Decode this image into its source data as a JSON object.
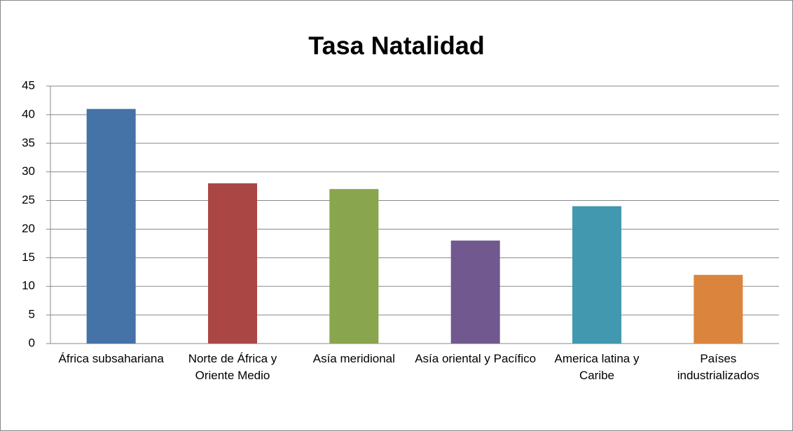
{
  "chart_data": {
    "type": "bar",
    "title": "Tasa Natalidad",
    "categories": [
      "África subsahariana",
      "Norte de África y Oriente Medio",
      "Asía meridional",
      "Asía oriental y Pacífico",
      "America latina y Caribe",
      "Países industrializados"
    ],
    "values": [
      41,
      28,
      27,
      18,
      24,
      12
    ],
    "colors": [
      "#4572a7",
      "#aa4643",
      "#89a54e",
      "#71588f",
      "#4198af",
      "#db843d"
    ],
    "ylim": [
      0,
      45
    ],
    "yticks": [
      0,
      5,
      10,
      15,
      20,
      25,
      30,
      35,
      40,
      45
    ],
    "grid": true
  }
}
